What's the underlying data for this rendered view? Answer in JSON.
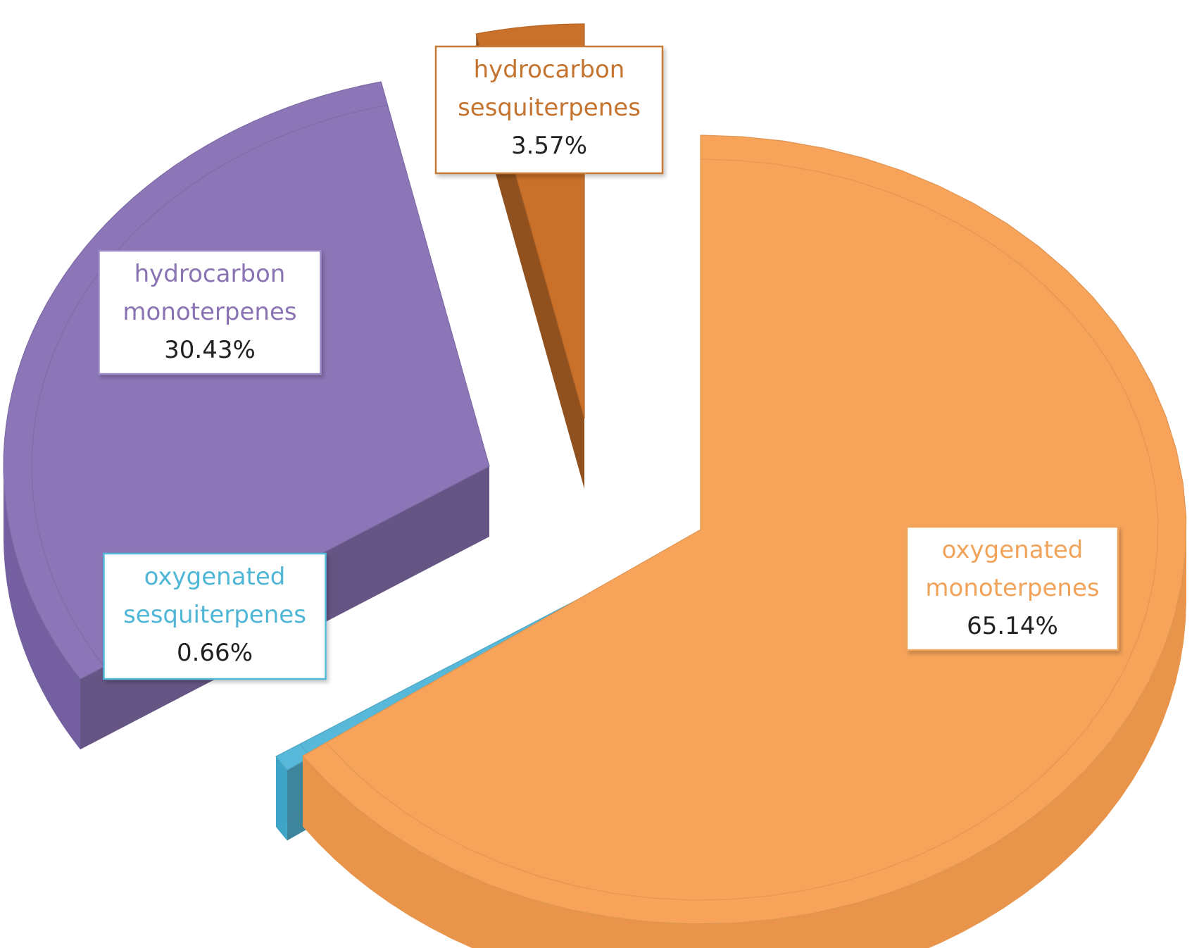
{
  "chart_data": {
    "type": "pie",
    "style": "3d-exploded",
    "legend": "none",
    "slices": [
      {
        "name": "oxygenated monoterpenes",
        "label_lines": [
          "oxygenated",
          "monoterpenes"
        ],
        "value": 65.14,
        "value_label": "65.14%",
        "color": "#F7A45A",
        "side_color": "#E8954B",
        "label_color": "#F1A35A",
        "border_color": "#F2A65C"
      },
      {
        "name": "oxygenated sesquiterpenes",
        "label_lines": [
          "oxygenated",
          "sesquiterpenes"
        ],
        "value": 0.66,
        "value_label": "0.66%",
        "color": "#57B8DA",
        "side_color": "#3FA5C8",
        "label_color": "#4FB6D6",
        "border_color": "#52B9D8"
      },
      {
        "name": "hydrocarbon monoterpenes",
        "label_lines": [
          "hydrocarbon",
          "monoterpenes"
        ],
        "value": 30.43,
        "value_label": "30.43%",
        "color": "#8C76B7",
        "side_color": "#7460A1",
        "label_color": "#8A73B3",
        "border_color": "#9A88C2"
      },
      {
        "name": "hydrocarbon sesquiterpenes",
        "label_lines": [
          "hydrocarbon",
          "sesquiterpenes"
        ],
        "value": 3.57,
        "value_label": "3.57%",
        "color": "#C9702A",
        "side_color": "#A35A1C",
        "label_color": "#C4742F",
        "border_color": "#C77A37"
      }
    ]
  }
}
